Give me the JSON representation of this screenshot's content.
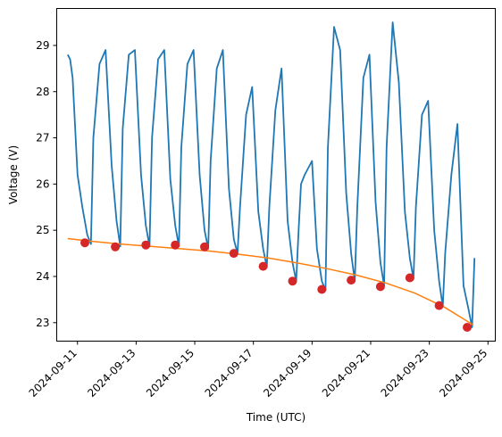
{
  "chart_data": {
    "type": "line",
    "xlabel": "Time (UTC)",
    "ylabel": "Voltage (V)",
    "xlim": [
      "2024-09-10T07:00",
      "2024-09-25T06:00"
    ],
    "ylim": [
      22.6,
      29.8
    ],
    "x_ticks": [
      "2024-09-11",
      "2024-09-13",
      "2024-09-15",
      "2024-09-17",
      "2024-09-19",
      "2024-09-21",
      "2024-09-23",
      "2024-09-25"
    ],
    "y_ticks": [
      23,
      24,
      25,
      26,
      27,
      28,
      29
    ],
    "grid": false,
    "legend": "none",
    "colors": {
      "voltage": "#1f77b4",
      "fit": "#ff7f0e",
      "minima": "#d62728"
    },
    "series": [
      {
        "kind": "line",
        "color": "#1f77b4",
        "x": [
          "2024-09-10T16:00",
          "2024-09-10T18:00",
          "2024-09-10T20:00",
          "2024-09-11T00:00",
          "2024-09-11T04:00",
          "2024-09-11T08:00",
          "2024-09-11T11:00",
          "2024-09-11T13:00",
          "2024-09-11T18:00",
          "2024-09-11T23:00",
          "2024-09-12T04:00",
          "2024-09-12T08:00",
          "2024-09-12T11:00",
          "2024-09-12T13:00",
          "2024-09-12T18:00",
          "2024-09-12T23:00",
          "2024-09-13T04:00",
          "2024-09-13T08:00",
          "2024-09-13T11:00",
          "2024-09-13T13:00",
          "2024-09-13T18:00",
          "2024-09-13T23:00",
          "2024-09-14T04:00",
          "2024-09-14T08:00",
          "2024-09-14T11:00",
          "2024-09-14T13:00",
          "2024-09-14T18:00",
          "2024-09-14T23:00",
          "2024-09-15T04:00",
          "2024-09-15T08:00",
          "2024-09-15T11:00",
          "2024-09-15T13:00",
          "2024-09-15T18:00",
          "2024-09-15T23:00",
          "2024-09-16T04:00",
          "2024-09-16T08:00",
          "2024-09-16T11:00",
          "2024-09-16T13:00",
          "2024-09-16T18:00",
          "2024-09-16T23:00",
          "2024-09-17T04:00",
          "2024-09-17T08:00",
          "2024-09-17T11:00",
          "2024-09-17T13:00",
          "2024-09-17T18:00",
          "2024-09-17T23:00",
          "2024-09-18T04:00",
          "2024-09-18T08:00",
          "2024-09-18T11:00",
          "2024-09-18T13:00",
          "2024-09-18T15:00",
          "2024-09-18T18:00",
          "2024-09-19T00:00",
          "2024-09-19T04:00",
          "2024-09-19T08:00",
          "2024-09-19T11:00",
          "2024-09-19T13:00",
          "2024-09-19T18:00",
          "2024-09-19T23:00",
          "2024-09-20T04:00",
          "2024-09-20T08:00",
          "2024-09-20T11:00",
          "2024-09-20T13:00",
          "2024-09-20T18:00",
          "2024-09-20T23:00",
          "2024-09-21T04:00",
          "2024-09-21T08:00",
          "2024-09-21T11:00",
          "2024-09-21T13:00",
          "2024-09-21T18:00",
          "2024-09-21T23:00",
          "2024-09-22T04:00",
          "2024-09-22T08:00",
          "2024-09-22T11:00",
          "2024-09-22T13:00",
          "2024-09-22T18:00",
          "2024-09-22T23:00",
          "2024-09-23T04:00",
          "2024-09-23T08:00",
          "2024-09-23T11:00",
          "2024-09-23T13:00",
          "2024-09-23T18:00",
          "2024-09-23T23:00",
          "2024-09-24T04:00",
          "2024-09-24T08:00",
          "2024-09-24T11:00",
          "2024-09-24T13:00"
        ],
        "y": [
          28.8,
          28.7,
          28.3,
          26.2,
          25.5,
          24.9,
          24.7,
          27.0,
          28.6,
          28.9,
          26.4,
          25.2,
          24.65,
          27.2,
          28.8,
          28.9,
          26.2,
          25.1,
          24.65,
          27.0,
          28.7,
          28.9,
          26.1,
          25.1,
          24.65,
          26.8,
          28.6,
          28.9,
          26.2,
          25.0,
          24.6,
          26.5,
          28.5,
          28.9,
          25.9,
          24.8,
          24.5,
          25.5,
          27.5,
          28.1,
          25.4,
          24.6,
          24.2,
          25.5,
          27.6,
          28.5,
          25.2,
          24.3,
          23.9,
          25.0,
          26.0,
          26.2,
          26.5,
          24.6,
          23.9,
          23.7,
          26.8,
          29.4,
          28.9,
          25.8,
          24.5,
          23.9,
          25.5,
          28.3,
          28.8,
          25.6,
          24.3,
          23.8,
          26.8,
          29.5,
          28.2,
          25.4,
          24.4,
          23.95,
          25.5,
          27.5,
          27.8,
          25.0,
          23.9,
          23.35,
          24.5,
          26.2,
          27.3,
          23.8,
          23.3,
          22.9,
          24.4
        ]
      },
      {
        "kind": "line",
        "color": "#ff7f0e",
        "x": [
          "2024-09-10T16:00",
          "2024-09-11T12:00",
          "2024-09-12T12:00",
          "2024-09-13T12:00",
          "2024-09-14T12:00",
          "2024-09-15T12:00",
          "2024-09-16T12:00",
          "2024-09-17T12:00",
          "2024-09-18T12:00",
          "2024-09-19T12:00",
          "2024-09-20T12:00",
          "2024-09-21T12:00",
          "2024-09-22T12:00",
          "2024-09-23T12:00",
          "2024-09-24T12:00"
        ],
        "y": [
          24.82,
          24.76,
          24.7,
          24.65,
          24.6,
          24.55,
          24.48,
          24.4,
          24.29,
          24.17,
          24.03,
          23.86,
          23.64,
          23.34,
          22.95
        ]
      },
      {
        "kind": "scatter",
        "color": "#d62728",
        "x": [
          "2024-09-11T06:00",
          "2024-09-12T07:00",
          "2024-09-13T08:00",
          "2024-09-14T08:00",
          "2024-09-15T08:00",
          "2024-09-16T08:00",
          "2024-09-17T08:00",
          "2024-09-18T08:00",
          "2024-09-19T08:00",
          "2024-09-20T08:00",
          "2024-09-21T08:00",
          "2024-09-22T08:00",
          "2024-09-23T08:00",
          "2024-09-24T07:00"
        ],
        "y": [
          24.73,
          24.64,
          24.68,
          24.68,
          24.64,
          24.5,
          24.22,
          23.9,
          23.72,
          23.92,
          23.78,
          23.97,
          23.37,
          22.9
        ]
      }
    ]
  }
}
